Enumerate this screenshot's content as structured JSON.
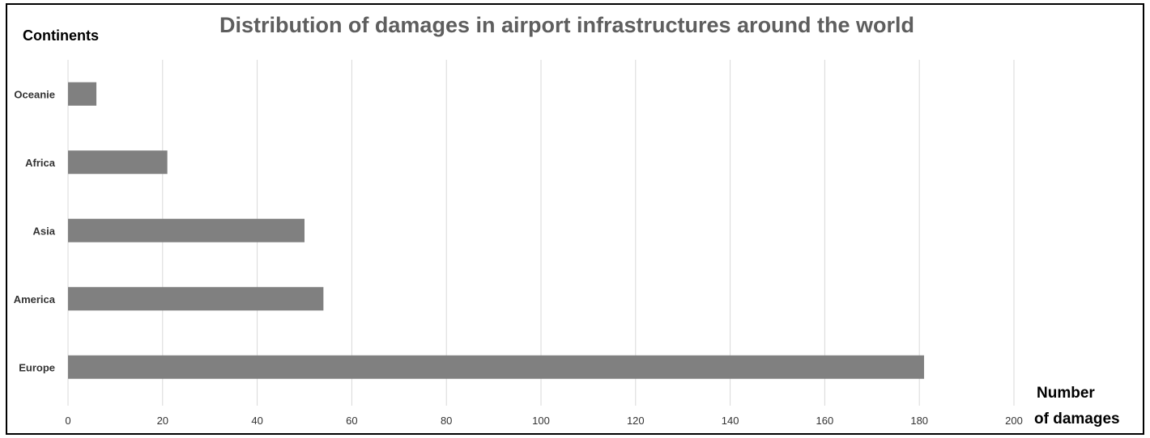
{
  "chart_data": {
    "type": "bar",
    "orientation": "horizontal",
    "title": "Distribution of damages in airport infrastructures around the world",
    "ylabel": "Continents",
    "xlabel_line1": "Number",
    "xlabel_line2": "of damages",
    "categories": [
      "Oceanie",
      "Africa",
      "Asia",
      "America",
      "Europe"
    ],
    "values": [
      6,
      21,
      50,
      54,
      181
    ],
    "xlim": [
      0,
      200
    ],
    "xticks": [
      0,
      20,
      40,
      60,
      80,
      100,
      120,
      140,
      160,
      180,
      200
    ],
    "grid": "vertical",
    "legend": "none",
    "bar_color": "#808080",
    "grid_color": "#d9d9d9"
  }
}
